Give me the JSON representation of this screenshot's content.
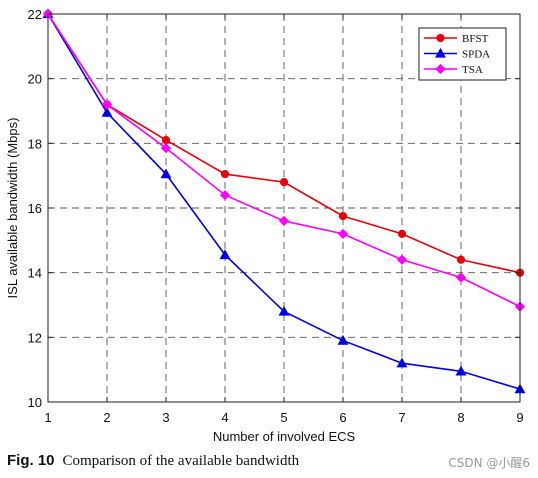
{
  "chart_data": {
    "type": "line",
    "title": "",
    "xlabel": "Number of involved ECS",
    "ylabel": "ISL available bandwidth (Mbps)",
    "x": [
      1,
      2,
      3,
      4,
      5,
      6,
      7,
      8,
      9
    ],
    "xlim": [
      1,
      9
    ],
    "ylim": [
      10,
      22
    ],
    "xticks": [
      "1",
      "2",
      "3",
      "4",
      "5",
      "6",
      "7",
      "8",
      "9"
    ],
    "yticks": [
      "10",
      "12",
      "14",
      "16",
      "18",
      "20",
      "22"
    ],
    "grid": true,
    "grid_style": "dashed",
    "legend_position": "top-right",
    "series": [
      {
        "name": "BFST",
        "color": "#e8000b",
        "marker": "circle",
        "values": [
          22.0,
          19.2,
          18.1,
          17.05,
          16.8,
          15.75,
          15.2,
          14.4,
          14.0
        ]
      },
      {
        "name": "SPDA",
        "color": "#0000e8",
        "marker": "triangle",
        "values": [
          22.0,
          18.95,
          17.05,
          14.55,
          12.8,
          11.9,
          11.2,
          10.95,
          10.4
        ]
      },
      {
        "name": "TSA",
        "color": "#ff00ff",
        "marker": "diamond",
        "values": [
          22.0,
          19.2,
          17.85,
          16.4,
          15.6,
          15.2,
          14.4,
          13.85,
          12.95
        ]
      }
    ]
  },
  "caption": {
    "figure_number": "Fig. 10",
    "text": "Comparison of the available bandwidth"
  },
  "watermark": "CSDN @小醒6"
}
